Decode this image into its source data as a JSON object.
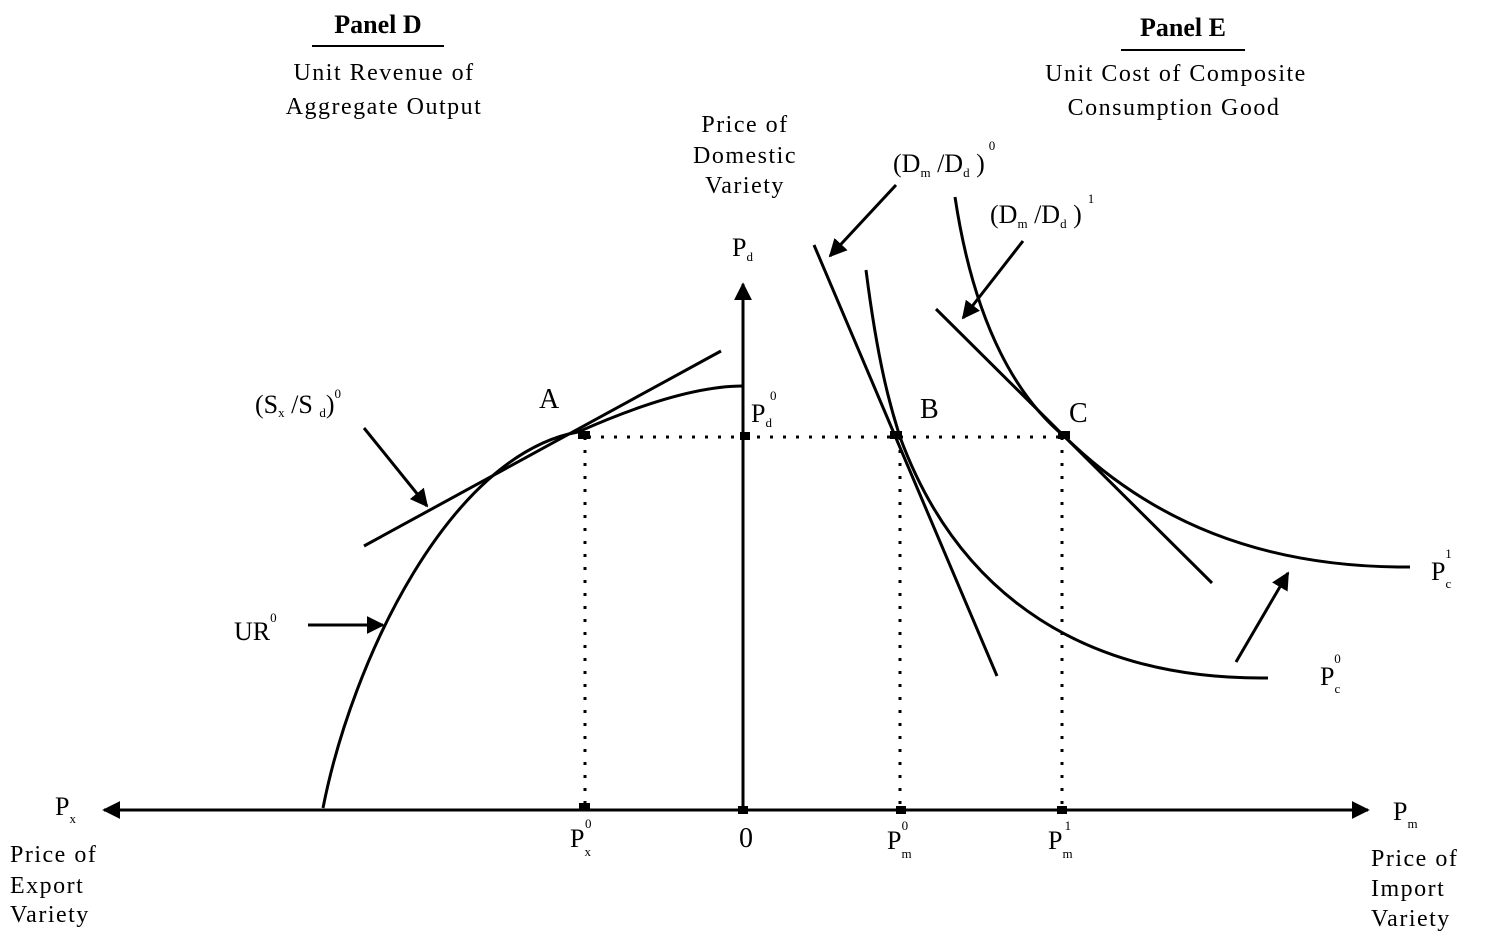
{
  "panel_d": {
    "title": "Panel D",
    "subtitle_line1": "Unit Revenue of",
    "subtitle_line2": "Aggregate Output"
  },
  "panel_e": {
    "title": "Panel E",
    "subtitle_line1": "Unit Cost of Composite",
    "subtitle_line2": "Consumption Good"
  },
  "vertical_axis": {
    "caption_line1": "Price of",
    "caption_line2": "Domestic",
    "caption_line3": "Variety",
    "symbol": "P",
    "symbol_sub": "d"
  },
  "left_axis": {
    "symbol": "P",
    "symbol_sub": "x",
    "caption_line1": "Price of",
    "caption_line2": "Export",
    "caption_line3": "Variety"
  },
  "right_axis": {
    "symbol": "P",
    "symbol_sub": "m",
    "caption_line1": "Price of",
    "caption_line2": "Import",
    "caption_line3": "Variety"
  },
  "origin_label": "0",
  "points": {
    "a": "A",
    "b": "B",
    "c": "C"
  },
  "ticks": {
    "pd0": {
      "base": "P",
      "sub": "d",
      "sup": "0"
    },
    "px0": {
      "base": "P",
      "sub": "x",
      "sup": "0"
    },
    "pm0": {
      "base": "P",
      "sub": "m",
      "sup": "0"
    },
    "pm1": {
      "base": "P",
      "sub": "m",
      "sup": "1"
    }
  },
  "curve_labels": {
    "ur0": {
      "base": "UR",
      "sup": "0"
    },
    "sxsd0": {
      "open": "(S",
      "sub1": "x",
      "mid": " /S ",
      "sub2": "d",
      "close": ")",
      "sup": "0"
    },
    "dmdd0": {
      "open": "(D",
      "sub1": "m",
      "mid": " /D",
      "sub2": "d",
      "close": " )",
      "sup": "0"
    },
    "dmdd1": {
      "open": "(D",
      "sub1": "m",
      "mid": " /D",
      "sub2": "d",
      "close": " )",
      "sup": "1"
    },
    "pc0": {
      "base": "P",
      "sub": "c",
      "sup": "0"
    },
    "pc1": {
      "base": "P",
      "sub": "c",
      "sup": "1"
    }
  }
}
